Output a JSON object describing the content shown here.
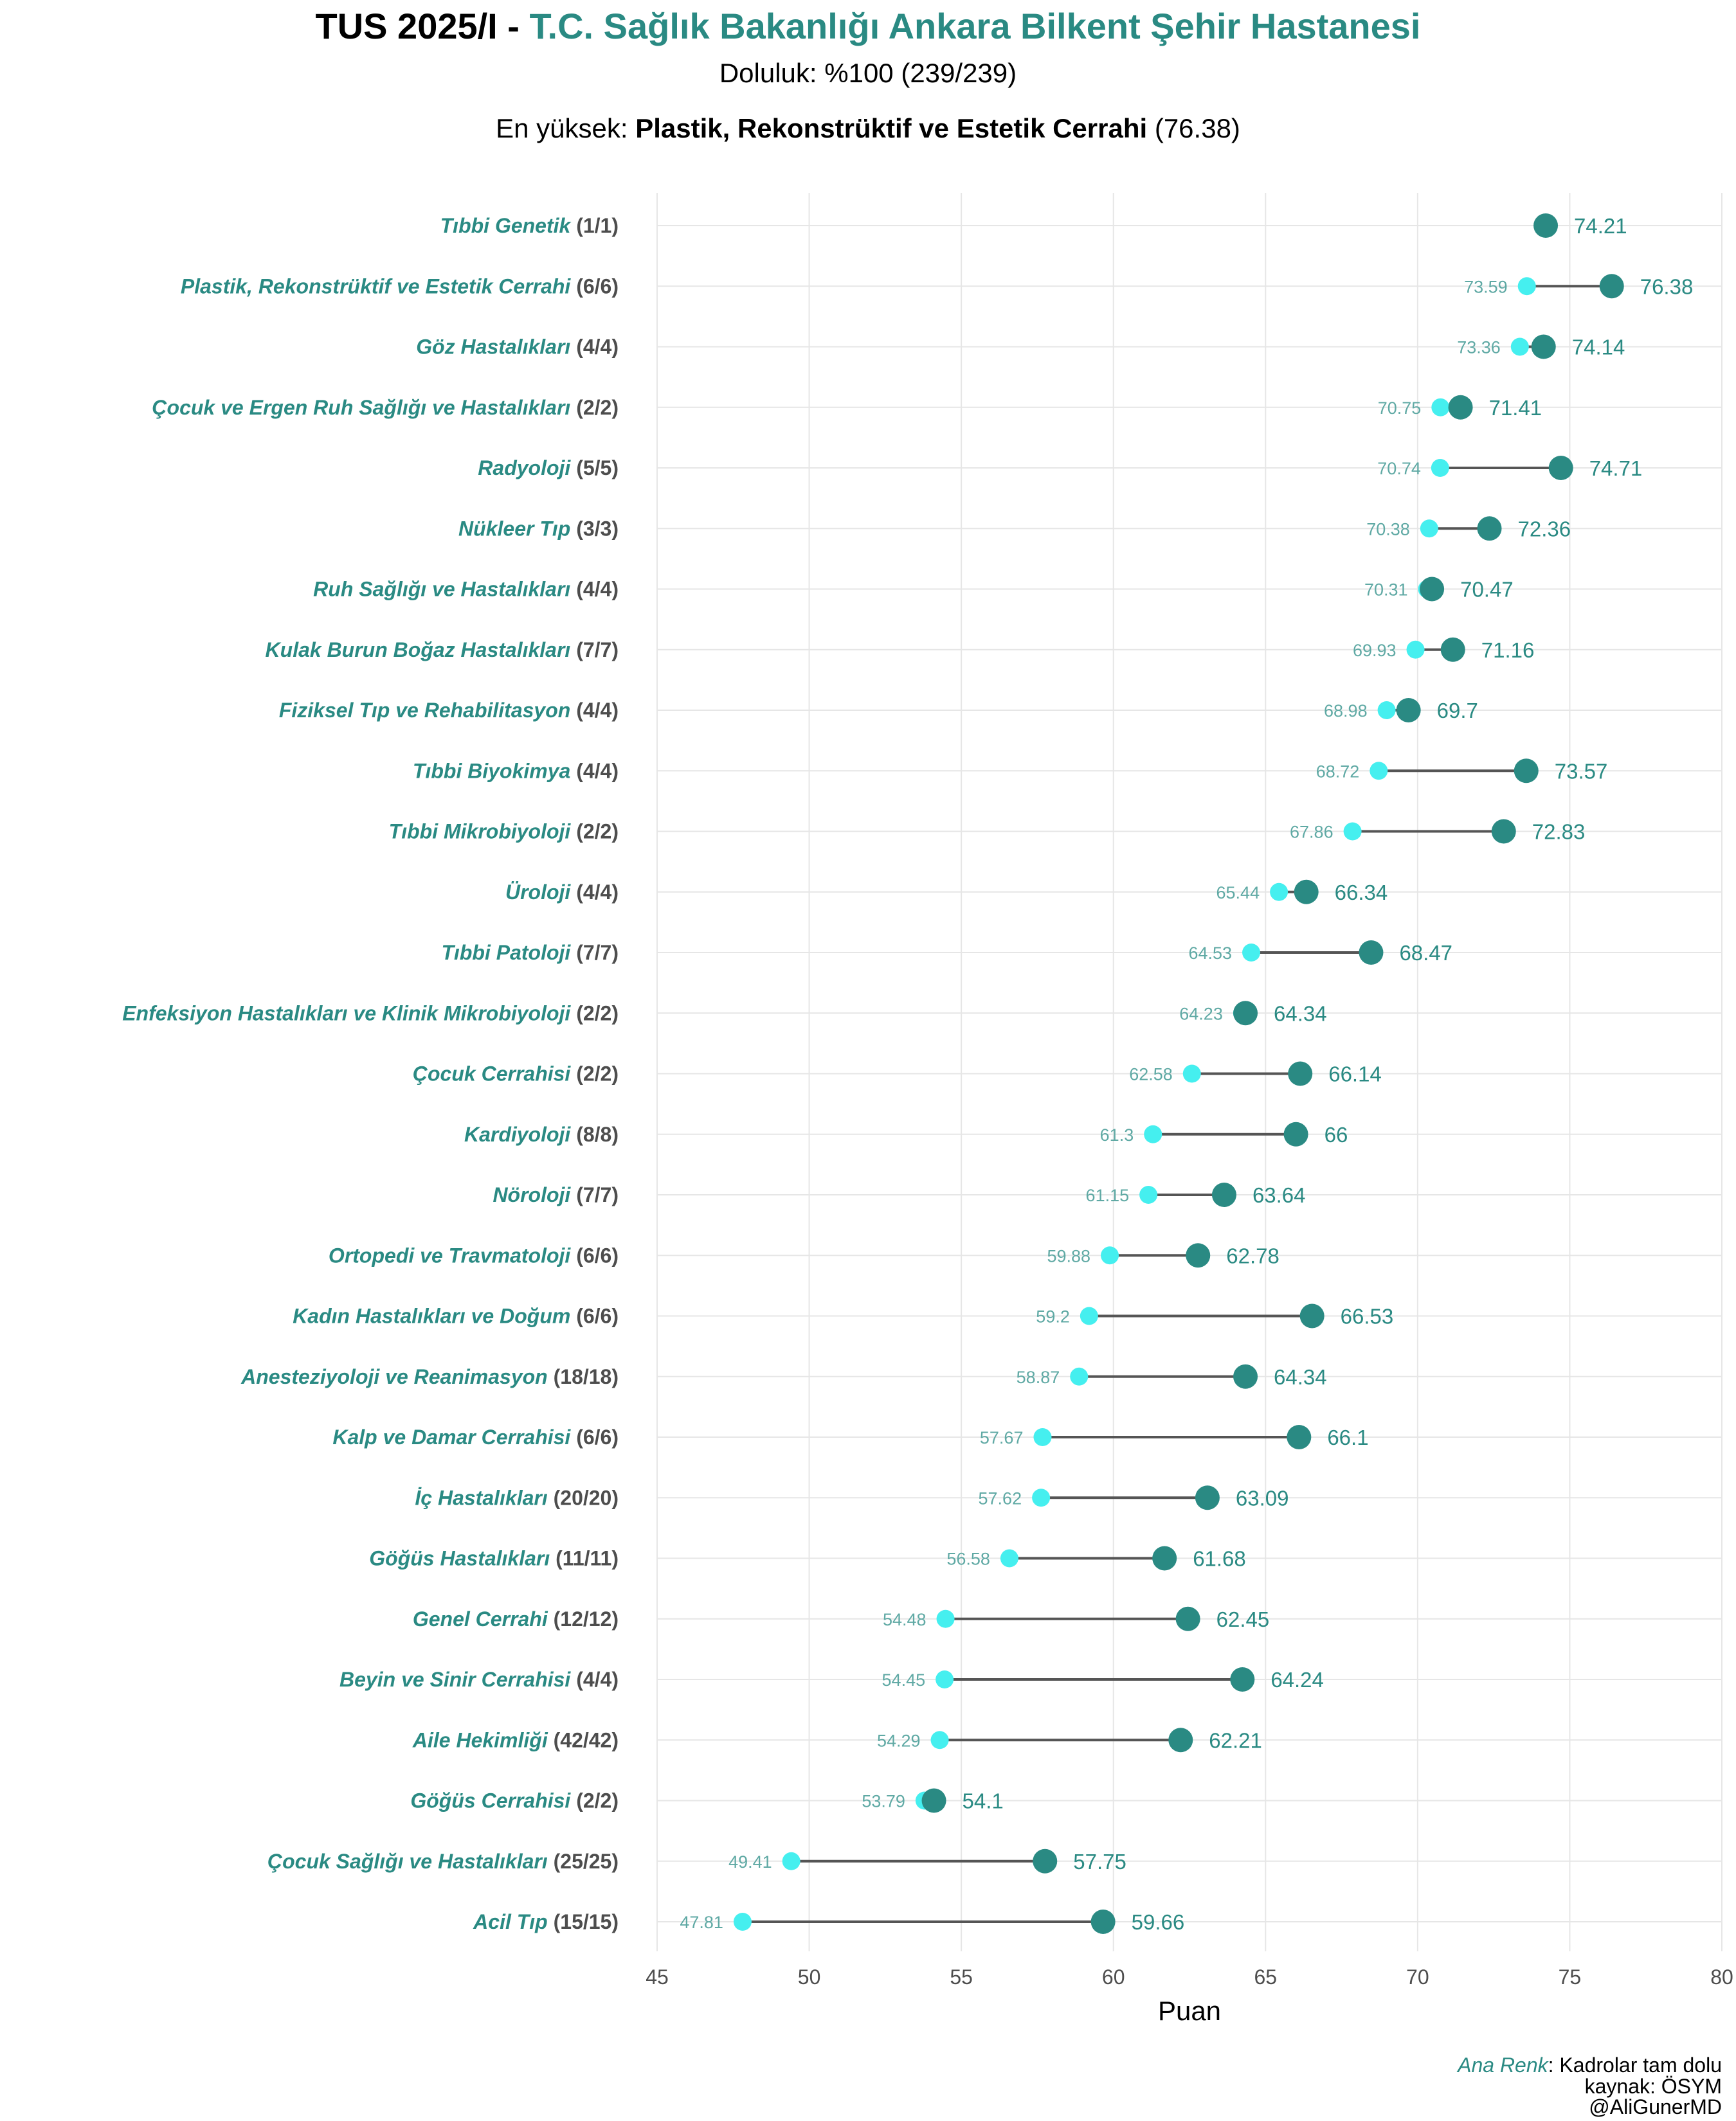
{
  "header": {
    "title_prefix": "TUS 2025/I - ",
    "title_hospital": "T.C. Sağlık Bakanlığı Ankara Bilkent Şehir Hastanesi",
    "occupancy": "Doluluk: %100 (239/239)",
    "top_prefix": "En yüksek: ",
    "top_name": "Plastik, Rekonstrüktif ve Estetik Cerrahi",
    "top_value": " (76.38)"
  },
  "caption": {
    "accent_label": "Ana Renk",
    "accent_text": ": Kadrolar tam dolu",
    "source": "kaynak: ÖSYM",
    "handle": "@AliGunerMD"
  },
  "colors": {
    "accent": "#2a8a83",
    "min_point": "#45efef",
    "min_label": "#5fa9a4",
    "segment": "#555555",
    "grid": "#e6e6e6"
  },
  "chart_data": {
    "type": "dumbbell",
    "xlabel": "Puan",
    "ylabel": "",
    "xlim": [
      45,
      80
    ],
    "xticks": [
      45,
      50,
      55,
      60,
      65,
      70,
      75,
      80
    ],
    "grid": true,
    "legend": "none",
    "series": [
      {
        "name": "min",
        "color": "#45efef"
      },
      {
        "name": "max",
        "color": "#2a8a83"
      }
    ],
    "rows": [
      {
        "name": "Tıbbi Genetik",
        "quota": "(1/1)",
        "min": 74.21,
        "max": 74.21,
        "min_label": "",
        "max_label": "74.21"
      },
      {
        "name": "Plastik, Rekonstrüktif ve Estetik Cerrahi",
        "quota": "(6/6)",
        "min": 73.59,
        "max": 76.38,
        "min_label": "73.59",
        "max_label": "76.38"
      },
      {
        "name": "Göz Hastalıkları",
        "quota": "(4/4)",
        "min": 73.36,
        "max": 74.14,
        "min_label": "73.36",
        "max_label": "74.14"
      },
      {
        "name": "Çocuk ve Ergen Ruh Sağlığı ve Hastalıkları",
        "quota": "(2/2)",
        "min": 70.75,
        "max": 71.41,
        "min_label": "70.75",
        "max_label": "71.41"
      },
      {
        "name": "Radyoloji",
        "quota": "(5/5)",
        "min": 70.74,
        "max": 74.71,
        "min_label": "70.74",
        "max_label": "74.71"
      },
      {
        "name": "Nükleer Tıp",
        "quota": "(3/3)",
        "min": 70.38,
        "max": 72.36,
        "min_label": "70.38",
        "max_label": "72.36"
      },
      {
        "name": "Ruh Sağlığı ve Hastalıkları",
        "quota": "(4/4)",
        "min": 70.31,
        "max": 70.47,
        "min_label": "70.31",
        "max_label": "70.47"
      },
      {
        "name": "Kulak Burun Boğaz Hastalıkları",
        "quota": "(7/7)",
        "min": 69.93,
        "max": 71.16,
        "min_label": "69.93",
        "max_label": "71.16"
      },
      {
        "name": "Fiziksel Tıp ve Rehabilitasyon",
        "quota": "(4/4)",
        "min": 68.98,
        "max": 69.7,
        "min_label": "68.98",
        "max_label": "69.7"
      },
      {
        "name": "Tıbbi Biyokimya",
        "quota": "(4/4)",
        "min": 68.72,
        "max": 73.57,
        "min_label": "68.72",
        "max_label": "73.57"
      },
      {
        "name": "Tıbbi Mikrobiyoloji",
        "quota": "(2/2)",
        "min": 67.86,
        "max": 72.83,
        "min_label": "67.86",
        "max_label": "72.83"
      },
      {
        "name": "Üroloji",
        "quota": "(4/4)",
        "min": 65.44,
        "max": 66.34,
        "min_label": "65.44",
        "max_label": "66.34"
      },
      {
        "name": "Tıbbi Patoloji",
        "quota": "(7/7)",
        "min": 64.53,
        "max": 68.47,
        "min_label": "64.53",
        "max_label": "68.47"
      },
      {
        "name": "Enfeksiyon Hastalıkları ve Klinik Mikrobiyoloji",
        "quota": "(2/2)",
        "min": 64.23,
        "max": 64.34,
        "min_label": "64.23",
        "max_label": "64.34"
      },
      {
        "name": "Çocuk Cerrahisi",
        "quota": "(2/2)",
        "min": 62.58,
        "max": 66.14,
        "min_label": "62.58",
        "max_label": "66.14"
      },
      {
        "name": "Kardiyoloji",
        "quota": "(8/8)",
        "min": 61.3,
        "max": 66,
        "min_label": "61.3",
        "max_label": "66"
      },
      {
        "name": "Nöroloji",
        "quota": "(7/7)",
        "min": 61.15,
        "max": 63.64,
        "min_label": "61.15",
        "max_label": "63.64"
      },
      {
        "name": "Ortopedi ve Travmatoloji",
        "quota": "(6/6)",
        "min": 59.88,
        "max": 62.78,
        "min_label": "59.88",
        "max_label": "62.78"
      },
      {
        "name": "Kadın Hastalıkları ve Doğum",
        "quota": "(6/6)",
        "min": 59.2,
        "max": 66.53,
        "min_label": "59.2",
        "max_label": "66.53"
      },
      {
        "name": "Anesteziyoloji ve Reanimasyon",
        "quota": "(18/18)",
        "min": 58.87,
        "max": 64.34,
        "min_label": "58.87",
        "max_label": "64.34"
      },
      {
        "name": "Kalp ve Damar Cerrahisi",
        "quota": "(6/6)",
        "min": 57.67,
        "max": 66.1,
        "min_label": "57.67",
        "max_label": "66.1"
      },
      {
        "name": "İç Hastalıkları",
        "quota": "(20/20)",
        "min": 57.62,
        "max": 63.09,
        "min_label": "57.62",
        "max_label": "63.09"
      },
      {
        "name": "Göğüs Hastalıkları",
        "quota": "(11/11)",
        "min": 56.58,
        "max": 61.68,
        "min_label": "56.58",
        "max_label": "61.68"
      },
      {
        "name": "Genel Cerrahi",
        "quota": "(12/12)",
        "min": 54.48,
        "max": 62.45,
        "min_label": "54.48",
        "max_label": "62.45"
      },
      {
        "name": "Beyin ve Sinir Cerrahisi",
        "quota": "(4/4)",
        "min": 54.45,
        "max": 64.24,
        "min_label": "54.45",
        "max_label": "64.24"
      },
      {
        "name": "Aile Hekimliği",
        "quota": "(42/42)",
        "min": 54.29,
        "max": 62.21,
        "min_label": "54.29",
        "max_label": "62.21"
      },
      {
        "name": "Göğüs Cerrahisi",
        "quota": "(2/2)",
        "min": 53.79,
        "max": 54.1,
        "min_label": "53.79",
        "max_label": "54.1"
      },
      {
        "name": "Çocuk Sağlığı ve Hastalıkları",
        "quota": "(25/25)",
        "min": 49.41,
        "max": 57.75,
        "min_label": "49.41",
        "max_label": "57.75"
      },
      {
        "name": "Acil Tıp",
        "quota": "(15/15)",
        "min": 47.81,
        "max": 59.66,
        "min_label": "47.81",
        "max_label": "59.66"
      }
    ]
  }
}
